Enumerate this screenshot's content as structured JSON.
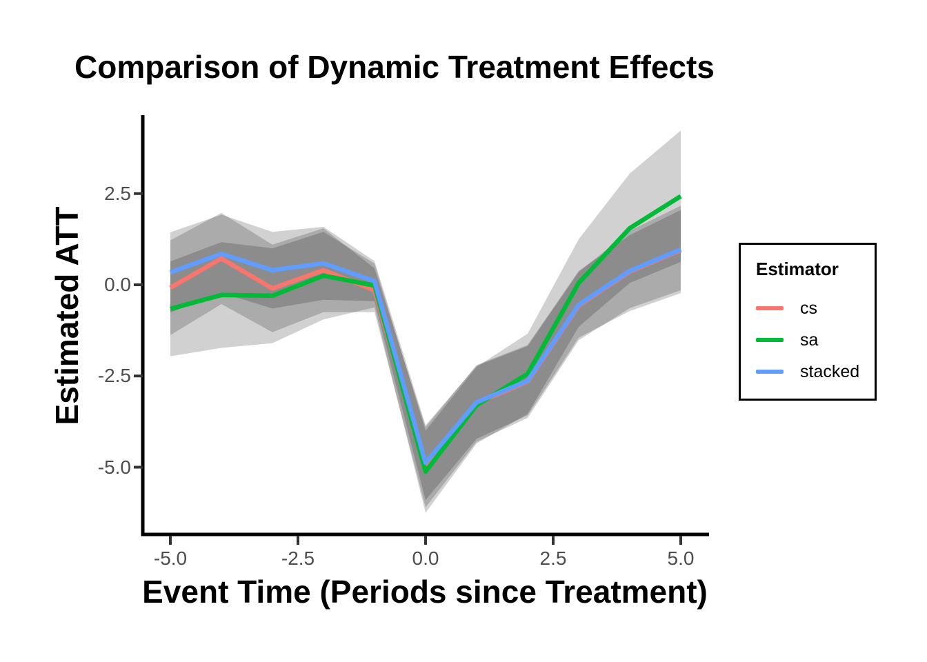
{
  "chart_data": {
    "type": "line",
    "title": "Comparison of Dynamic Treatment Effects",
    "xlabel": "Event Time (Periods since Treatment)",
    "ylabel": "Estimated ATT",
    "x": [
      -5,
      -4,
      -3,
      -2,
      -1,
      0,
      1,
      2,
      3,
      4,
      5
    ],
    "xlim": [
      -5.6,
      5.6
    ],
    "ylim": [
      -6.5,
      4.5
    ],
    "grid": false,
    "xticks": {
      "values": [
        -5.0,
        -2.5,
        0.0,
        2.5,
        5.0
      ],
      "labels": [
        "-5.0",
        "-2.5",
        "0.0",
        "2.5",
        "5.0"
      ]
    },
    "yticks": {
      "values": [
        2.5,
        0.0,
        -2.5,
        -5.0
      ],
      "labels": [
        "2.5",
        "0.0",
        "-2.5",
        "-5.0"
      ]
    },
    "legend": {
      "title": "Estimator",
      "position": "right"
    },
    "ribbon": {
      "color": "#000000",
      "opacity": 0.18,
      "note": "95% CI band per estimator; overlaps render darker gray"
    },
    "series": [
      {
        "name": "cs",
        "color": "#F8766D",
        "values": [
          -0.08,
          0.72,
          -0.1,
          0.4,
          -0.15,
          -5.0,
          -3.25,
          -2.65,
          -0.57,
          0.36,
          0.95
        ],
        "lo": [
          -1.38,
          -0.53,
          -1.3,
          -0.75,
          -0.75,
          -6.1,
          -4.3,
          -3.65,
          -1.52,
          -0.64,
          -0.15
        ],
        "hi": [
          1.22,
          1.97,
          1.1,
          1.55,
          0.45,
          -3.9,
          -2.2,
          -1.65,
          0.38,
          1.36,
          2.05
        ]
      },
      {
        "name": "sa",
        "color": "#00BA38",
        "values": [
          -0.66,
          -0.28,
          -0.3,
          0.25,
          -0.02,
          -5.12,
          -3.3,
          -2.44,
          0.05,
          1.55,
          2.43
        ],
        "lo": [
          -1.96,
          -1.73,
          -1.6,
          -0.95,
          -0.62,
          -6.25,
          -4.35,
          -3.54,
          -1.15,
          0.05,
          0.63
        ],
        "hi": [
          0.64,
          1.17,
          1.0,
          1.45,
          0.58,
          -4.0,
          -2.25,
          -1.34,
          1.25,
          3.05,
          4.23
        ]
      },
      {
        "name": "stacked",
        "color": "#619CFF",
        "values": [
          0.34,
          0.85,
          0.4,
          0.59,
          0.1,
          -4.88,
          -3.22,
          -2.63,
          -0.55,
          0.38,
          0.97
        ],
        "lo": [
          -0.76,
          -0.22,
          -0.65,
          -0.41,
          -0.45,
          -5.9,
          -4.22,
          -3.58,
          -1.45,
          -0.72,
          -0.23
        ],
        "hi": [
          1.44,
          1.92,
          1.45,
          1.59,
          0.65,
          -3.85,
          -2.22,
          -1.68,
          0.35,
          1.48,
          2.17
        ]
      }
    ],
    "axis_color": "#000000",
    "tick_color": "#333333",
    "tick_label_color": "#4d4d4d"
  }
}
